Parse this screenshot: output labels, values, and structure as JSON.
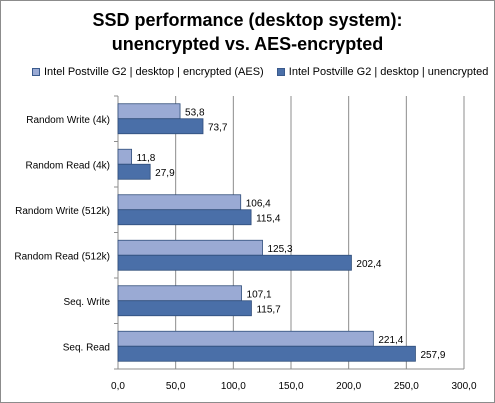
{
  "chart_data": {
    "type": "bar",
    "orientation": "horizontal",
    "title": "SSD performance (desktop system): unencrypted vs. AES-encrypted",
    "title_lines": [
      "SSD performance (desktop system):",
      "unencrypted vs. AES-encrypted"
    ],
    "categories": [
      "Random Write (4k)",
      "Random Read (4k)",
      "Random Write (512k)",
      "Random Read (512k)",
      "Seq. Write",
      "Seq. Read"
    ],
    "series": [
      {
        "name": "Intel Postville G2 | desktop | encrypted (AES)",
        "color": "#9aaad4",
        "values": [
          53.8,
          11.8,
          106.4,
          125.3,
          107.1,
          221.4
        ],
        "labels": [
          "53,8",
          "11,8",
          "106,4",
          "125,3",
          "107,1",
          "221,4"
        ]
      },
      {
        "name": "Intel Postville G2 | desktop | unencrypted",
        "color": "#4a6fa8",
        "values": [
          73.7,
          27.9,
          115.4,
          202.4,
          115.7,
          257.9
        ],
        "labels": [
          "73,7",
          "27,9",
          "115,4",
          "202,4",
          "115,7",
          "257,9"
        ]
      }
    ],
    "xlim": [
      0,
      300
    ],
    "xticks": [
      0,
      50,
      100,
      150,
      200,
      250,
      300
    ],
    "xtick_labels": [
      "0,0",
      "50,0",
      "100,0",
      "150,0",
      "200,0",
      "250,0",
      "300,0"
    ],
    "grid": "vertical",
    "legend_position": "top"
  }
}
